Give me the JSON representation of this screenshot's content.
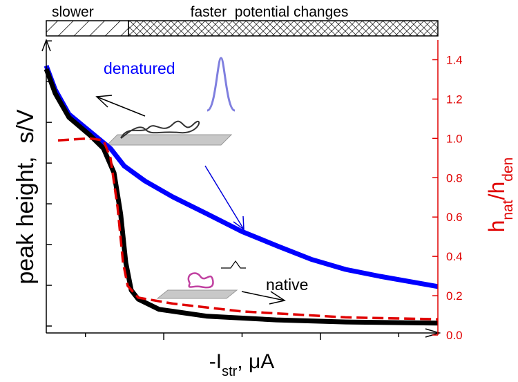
{
  "chart_data": {
    "type": "line",
    "y_label": "peak height,  s/V",
    "x_label": [
      "-I",
      "str",
      ", μA"
    ],
    "y2_label": [
      "h",
      "nat",
      "/h",
      "den"
    ],
    "regions": [
      {
        "label": "slower",
        "x": [
          0,
          2.1
        ]
      },
      {
        "label": "faster  potential changes",
        "x": [
          2.1,
          10
        ]
      }
    ],
    "xlim": [
      0,
      10
    ],
    "xticks": [
      1,
      3,
      5,
      7,
      9
    ],
    "ylim": [
      -0.17,
      7.02
    ],
    "yticks": [
      0,
      1,
      2,
      3,
      4,
      5,
      6,
      7
    ],
    "y2lim": [
      0,
      1.5
    ],
    "y2ticks": [
      {
        "value": 0,
        "label": "0.0"
      },
      0.2,
      0.4,
      0.6,
      0.8,
      {
        "value": 1,
        "label": "1.0"
      },
      1.2,
      1.4
    ],
    "series": [
      {
        "name": "denatured",
        "color": "#0000ff",
        "x": [
          0,
          0.23,
          0.58,
          1.11,
          1.64,
          1.99,
          2.52,
          3.23,
          4.11,
          5.0,
          5.94,
          6.76,
          7.64,
          8.52,
          10
        ],
        "values": [
          6.39,
          5.8,
          5.2,
          4.78,
          4.36,
          3.93,
          3.56,
          3.17,
          2.75,
          2.32,
          1.95,
          1.64,
          1.39,
          1.22,
          0.97
        ]
      },
      {
        "name": "native",
        "color": "#000000",
        "x": [
          0,
          0.23,
          0.58,
          1.11,
          1.46,
          1.73,
          1.9,
          2.03,
          2.17,
          2.35,
          2.88,
          4.11,
          5.87,
          7.64,
          10
        ],
        "values": [
          6.31,
          5.71,
          5.12,
          4.69,
          4.36,
          3.76,
          2.75,
          1.56,
          0.88,
          0.66,
          0.41,
          0.24,
          0.15,
          0.1,
          0.07
        ]
      },
      {
        "color": "#e00000",
        "axis": "y2",
        "dashed": true,
        "x": [
          0.3,
          1.11,
          1.46,
          1.64,
          1.82,
          1.96,
          2.08,
          2.35,
          3.23,
          4.99,
          7.64,
          10
        ],
        "values": [
          0.99,
          1.0,
          0.99,
          0.9,
          0.65,
          0.37,
          0.25,
          0.19,
          0.16,
          0.12,
          0.09,
          0.08
        ]
      }
    ]
  }
}
